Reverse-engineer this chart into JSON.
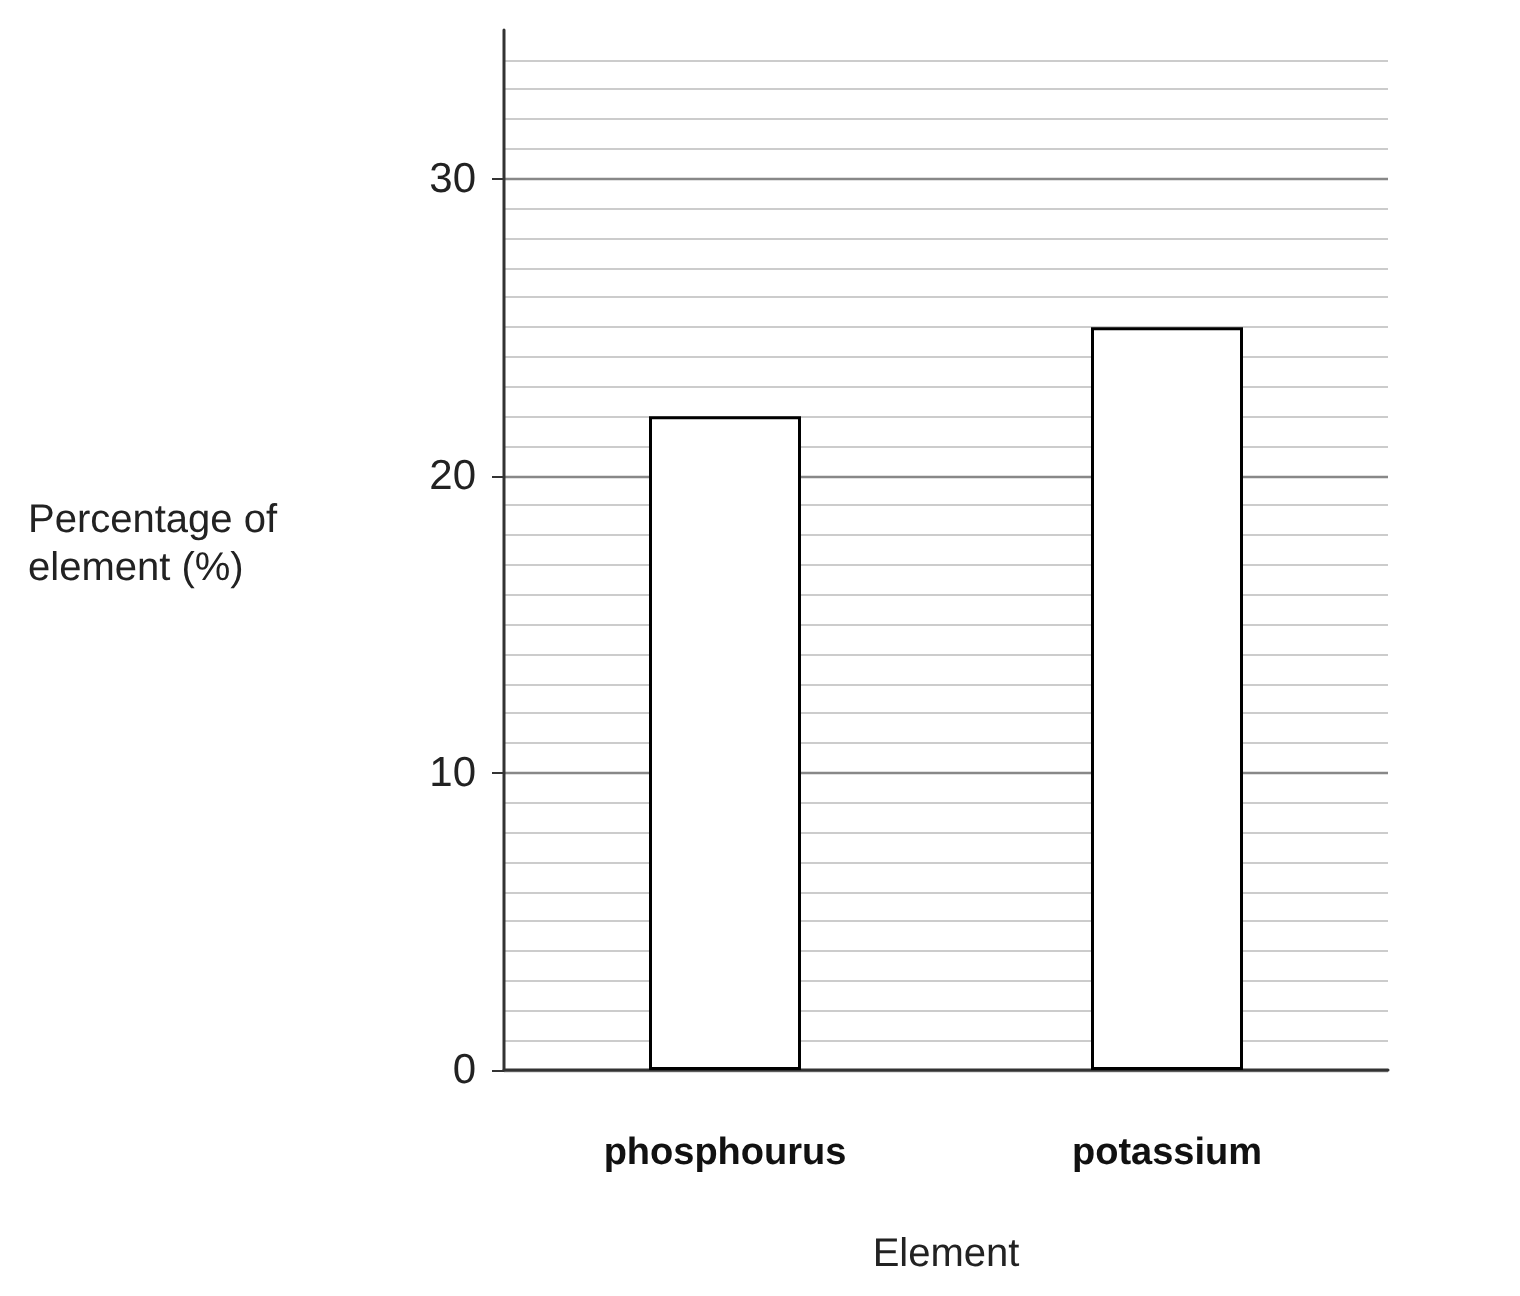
{
  "chart_data": {
    "type": "bar",
    "xlabel": "Element",
    "ylabel": "Percentage of element (%)",
    "categories": [
      "phosphourus",
      "potassium"
    ],
    "values": [
      22,
      25
    ],
    "color": "#ffffff",
    "ylim": [
      0,
      35
    ],
    "yticks": [
      0,
      10,
      20,
      30
    ],
    "grid": "y"
  }
}
